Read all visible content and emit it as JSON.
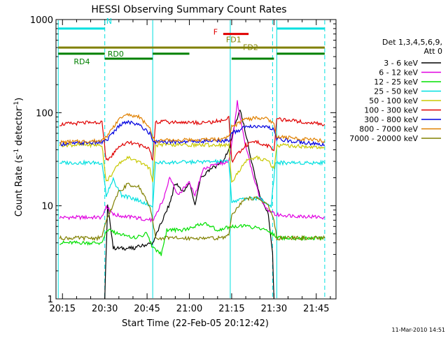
{
  "chart_data": {
    "type": "line",
    "title": "HESSI Observing Summary Count Rates",
    "xlabel": "Start Time (22-Feb-05 20:12:42)",
    "ylabel_main": "Count Rate (s",
    "ylabel_sup1": "-1",
    "ylabel_mid": " detector",
    "ylabel_sup2": "-1",
    "ylabel_end": ")",
    "y_scale": "log",
    "ylim": [
      1,
      1000
    ],
    "xlim": [
      "20:12:42",
      "21:52:00"
    ],
    "x_ticks": [
      {
        "t": "20:15",
        "label": "20:15"
      },
      {
        "t": "20:30",
        "label": "20:30"
      },
      {
        "t": "20:45",
        "label": "20:45"
      },
      {
        "t": "21:00",
        "label": "21:00"
      },
      {
        "t": "21:15",
        "label": "21:15"
      },
      {
        "t": "21:30",
        "label": "21:30"
      },
      {
        "t": "21:45",
        "label": "21:45"
      }
    ],
    "y_ticks": [
      {
        "v": 1,
        "label": "1"
      },
      {
        "v": 10,
        "label": "10"
      },
      {
        "v": 100,
        "label": "100"
      },
      {
        "v": 1000,
        "label": "1000"
      }
    ],
    "legend_header": [
      "Det 1,3,4,5,6,9,",
      "Att 0"
    ],
    "legend_position": "right",
    "series": [
      {
        "name": "3 - 6 keV",
        "color": "#000000",
        "points": [
          [
            "20:30:00",
            1.0
          ],
          [
            "20:31:00",
            10.5
          ],
          [
            "20:33:00",
            3.5
          ],
          [
            "20:40:00",
            3.5
          ],
          [
            "20:47:00",
            4.0
          ],
          [
            "20:53:00",
            10.5
          ],
          [
            "20:55:00",
            17.5
          ],
          [
            "20:58:00",
            14.0
          ],
          [
            "21:00:00",
            18.0
          ],
          [
            "21:02:00",
            10.0
          ],
          [
            "21:04:00",
            20.0
          ],
          [
            "21:08:00",
            25.0
          ],
          [
            "21:12:00",
            30.0
          ],
          [
            "21:14:00",
            40.0
          ],
          [
            "21:16:00",
            70.0
          ],
          [
            "21:18:00",
            107.0
          ],
          [
            "21:20:00",
            60.0
          ],
          [
            "21:22:00",
            30.0
          ],
          [
            "21:25:00",
            13.0
          ],
          [
            "21:28:00",
            8.0
          ],
          [
            "21:29:30",
            3.0
          ],
          [
            "21:30:00",
            1.0
          ]
        ]
      },
      {
        "name": "6 - 12 keV",
        "color": "#e000e0",
        "points": [
          [
            "20:14:00",
            7.5
          ],
          [
            "20:29:00",
            7.5
          ],
          [
            "20:30:30",
            10.0
          ],
          [
            "20:33:00",
            8.0
          ],
          [
            "20:40:00",
            7.5
          ],
          [
            "20:47:00",
            7.0
          ],
          [
            "20:51:00",
            12.0
          ],
          [
            "20:53:00",
            20.0
          ],
          [
            "20:56:00",
            13.0
          ],
          [
            "21:00:00",
            18.0
          ],
          [
            "21:02:00",
            13.0
          ],
          [
            "21:05:00",
            25.0
          ],
          [
            "21:10:00",
            28.0
          ],
          [
            "21:14:00",
            30.0
          ],
          [
            "21:16:00",
            70.0
          ],
          [
            "21:17:00",
            130.0
          ],
          [
            "21:19:00",
            60.0
          ],
          [
            "21:22:00",
            25.0
          ],
          [
            "21:25:00",
            12.0
          ],
          [
            "21:28:00",
            9.0
          ],
          [
            "21:31:00",
            8.0
          ],
          [
            "21:48:00",
            7.5
          ]
        ]
      },
      {
        "name": "12 - 25 keV",
        "color": "#00e000",
        "points": [
          [
            "20:14:00",
            4.0
          ],
          [
            "20:29:00",
            4.0
          ],
          [
            "20:30:30",
            5.5
          ],
          [
            "20:35:00",
            5.0
          ],
          [
            "20:40:00",
            4.5
          ],
          [
            "20:45:00",
            5.0
          ],
          [
            "20:47:00",
            3.5
          ],
          [
            "20:50:00",
            3.0
          ],
          [
            "20:52:00",
            5.5
          ],
          [
            "20:58:00",
            5.5
          ],
          [
            "21:05:00",
            6.5
          ],
          [
            "21:10:00",
            5.5
          ],
          [
            "21:15:00",
            6.0
          ],
          [
            "21:20:00",
            6.0
          ],
          [
            "21:28:00",
            5.5
          ],
          [
            "21:31:00",
            4.5
          ],
          [
            "21:48:00",
            4.5
          ]
        ]
      },
      {
        "name": "25 - 50 keV",
        "color": "#00e0e0",
        "points": [
          [
            "20:14:00",
            29.0
          ],
          [
            "20:29:00",
            29.0
          ],
          [
            "20:30:30",
            13.0
          ],
          [
            "20:33:00",
            19.0
          ],
          [
            "20:36:00",
            13.0
          ],
          [
            "20:40:00",
            12.0
          ],
          [
            "20:47:00",
            10.0
          ],
          [
            "20:48:00",
            29.0
          ],
          [
            "21:14:00",
            30.0
          ],
          [
            "21:15:00",
            11.0
          ],
          [
            "21:20:00",
            12.0
          ],
          [
            "21:25:00",
            12.0
          ],
          [
            "21:29:00",
            10.0
          ],
          [
            "21:30:30",
            29.0
          ],
          [
            "21:48:00",
            29.0
          ]
        ]
      },
      {
        "name": "50 - 100 keV",
        "color": "#c8c800",
        "points": [
          [
            "20:14:00",
            45.0
          ],
          [
            "20:29:00",
            45.0
          ],
          [
            "20:30:30",
            18.0
          ],
          [
            "20:35:00",
            28.0
          ],
          [
            "20:38:00",
            33.0
          ],
          [
            "20:42:00",
            30.0
          ],
          [
            "20:46:00",
            25.0
          ],
          [
            "20:47:00",
            18.0
          ],
          [
            "20:48:00",
            45.0
          ],
          [
            "21:14:00",
            45.0
          ],
          [
            "21:15:00",
            18.0
          ],
          [
            "21:20:00",
            30.0
          ],
          [
            "21:24:00",
            33.0
          ],
          [
            "21:28:00",
            30.0
          ],
          [
            "21:30:00",
            25.0
          ],
          [
            "21:31:00",
            45.0
          ],
          [
            "21:48:00",
            42.0
          ]
        ]
      },
      {
        "name": "100 - 300 keV",
        "color": "#e00000",
        "points": [
          [
            "20:14:00",
            75.0
          ],
          [
            "20:24:00",
            78.0
          ],
          [
            "20:29:00",
            80.0
          ],
          [
            "20:30:30",
            30.0
          ],
          [
            "20:35:00",
            42.0
          ],
          [
            "20:38:00",
            48.0
          ],
          [
            "20:42:00",
            45.0
          ],
          [
            "20:46:00",
            40.0
          ],
          [
            "20:47:00",
            30.0
          ],
          [
            "20:48:00",
            80.0
          ],
          [
            "21:05:00",
            78.0
          ],
          [
            "21:12:00",
            82.0
          ],
          [
            "21:14:00",
            88.0
          ],
          [
            "21:15:00",
            30.0
          ],
          [
            "21:20:00",
            45.0
          ],
          [
            "21:24:00",
            48.0
          ],
          [
            "21:28:00",
            44.0
          ],
          [
            "21:30:00",
            38.0
          ],
          [
            "21:31:00",
            85.0
          ],
          [
            "21:40:00",
            80.0
          ],
          [
            "21:48:00",
            75.0
          ]
        ]
      },
      {
        "name": "300 - 800 keV",
        "color": "#0000e0",
        "points": [
          [
            "20:14:00",
            46.0
          ],
          [
            "20:29:00",
            48.0
          ],
          [
            "20:30:30",
            50.0
          ],
          [
            "20:35:00",
            72.0
          ],
          [
            "20:38:00",
            80.0
          ],
          [
            "20:42:00",
            75.0
          ],
          [
            "20:46:00",
            60.0
          ],
          [
            "20:47:00",
            50.0
          ],
          [
            "20:48:00",
            48.0
          ],
          [
            "21:12:00",
            50.0
          ],
          [
            "21:14:00",
            50.0
          ],
          [
            "21:15:00",
            60.0
          ],
          [
            "21:20:00",
            70.0
          ],
          [
            "21:24:00",
            72.0
          ],
          [
            "21:28:00",
            70.0
          ],
          [
            "21:30:00",
            65.0
          ],
          [
            "21:31:00",
            52.0
          ],
          [
            "21:48:00",
            45.0
          ]
        ]
      },
      {
        "name": "800 - 7000 keV",
        "color": "#e08000",
        "points": [
          [
            "20:14:00",
            48.0
          ],
          [
            "20:29:00",
            50.0
          ],
          [
            "20:30:30",
            55.0
          ],
          [
            "20:35:00",
            85.0
          ],
          [
            "20:38:00",
            95.0
          ],
          [
            "20:42:00",
            90.0
          ],
          [
            "20:46:00",
            70.0
          ],
          [
            "20:47:00",
            55.0
          ],
          [
            "20:48:00",
            50.0
          ],
          [
            "21:12:00",
            52.0
          ],
          [
            "21:14:00",
            55.0
          ],
          [
            "21:15:00",
            70.0
          ],
          [
            "21:20:00",
            85.0
          ],
          [
            "21:24:00",
            88.0
          ],
          [
            "21:28:00",
            85.0
          ],
          [
            "21:30:00",
            75.0
          ],
          [
            "21:31:00",
            55.0
          ],
          [
            "21:48:00",
            50.0
          ]
        ]
      },
      {
        "name": "7000 - 20000 keV",
        "color": "#808000",
        "points": [
          [
            "20:14:00",
            4.5
          ],
          [
            "20:29:00",
            4.5
          ],
          [
            "20:30:30",
            7.0
          ],
          [
            "20:35:00",
            14.0
          ],
          [
            "20:38:00",
            17.0
          ],
          [
            "20:42:00",
            16.0
          ],
          [
            "20:46:00",
            10.0
          ],
          [
            "20:47:00",
            7.0
          ],
          [
            "20:48:00",
            4.5
          ],
          [
            "21:12:00",
            4.5
          ],
          [
            "21:14:00",
            5.0
          ],
          [
            "21:15:00",
            8.0
          ],
          [
            "21:20:00",
            12.0
          ],
          [
            "21:24:00",
            12.0
          ],
          [
            "21:28:00",
            10.0
          ],
          [
            "21:30:00",
            7.0
          ],
          [
            "21:31:00",
            4.5
          ],
          [
            "21:48:00",
            4.5
          ]
        ]
      }
    ],
    "annotations": [
      {
        "label": "N",
        "color": "#00e0e0"
      },
      {
        "label": "F",
        "color": "#e00000"
      },
      {
        "label": "FD1",
        "color": "#808000"
      },
      {
        "label": "FD2",
        "color": "#808000"
      },
      {
        "label": "RD0",
        "color": "#008000"
      },
      {
        "label": "RD4",
        "color": "#008000"
      }
    ],
    "bars": {
      "N": {
        "color": "#00e0e0",
        "y": 800,
        "segments": [
          [
            "20:13:30",
            "20:30:00"
          ],
          [
            "21:31:00",
            "21:48:00"
          ]
        ]
      },
      "F": {
        "color": "#e00000",
        "y": 700,
        "segments": [
          [
            "21:12:00",
            "21:21:00"
          ]
        ]
      },
      "FD": {
        "color": "#808000",
        "y": 500,
        "segments": [
          [
            "20:13:30",
            "21:48:00"
          ]
        ]
      },
      "RD0": {
        "color": "#008000",
        "y": 430,
        "segments": [
          [
            "20:13:30",
            "20:30:00"
          ],
          [
            "20:47:00",
            "21:00:00"
          ],
          [
            "21:31:00",
            "21:48:00"
          ]
        ]
      },
      "RD4": {
        "color": "#008000",
        "y": 380,
        "segments": [
          [
            "20:30:00",
            "20:47:00"
          ],
          [
            "21:15:00",
            "21:30:00"
          ]
        ]
      }
    },
    "vlines": [
      {
        "t": "20:13:30",
        "color": "#00e0e0",
        "dash": false
      },
      {
        "t": "20:30:00",
        "color": "#00e0e0",
        "dash": true
      },
      {
        "t": "20:47:00",
        "color": "#00e0e0",
        "dash": false
      },
      {
        "t": "21:14:30",
        "color": "#00e0e0",
        "dash": false
      },
      {
        "t": "21:29:30",
        "color": "#00e0e0",
        "dash": true
      },
      {
        "t": "21:31:00",
        "color": "#00e0e0",
        "dash": false
      },
      {
        "t": "21:48:00",
        "color": "#00e0e0",
        "dash": true
      }
    ]
  },
  "footer": {
    "timestamp": "11-Mar-2010 14:51"
  }
}
